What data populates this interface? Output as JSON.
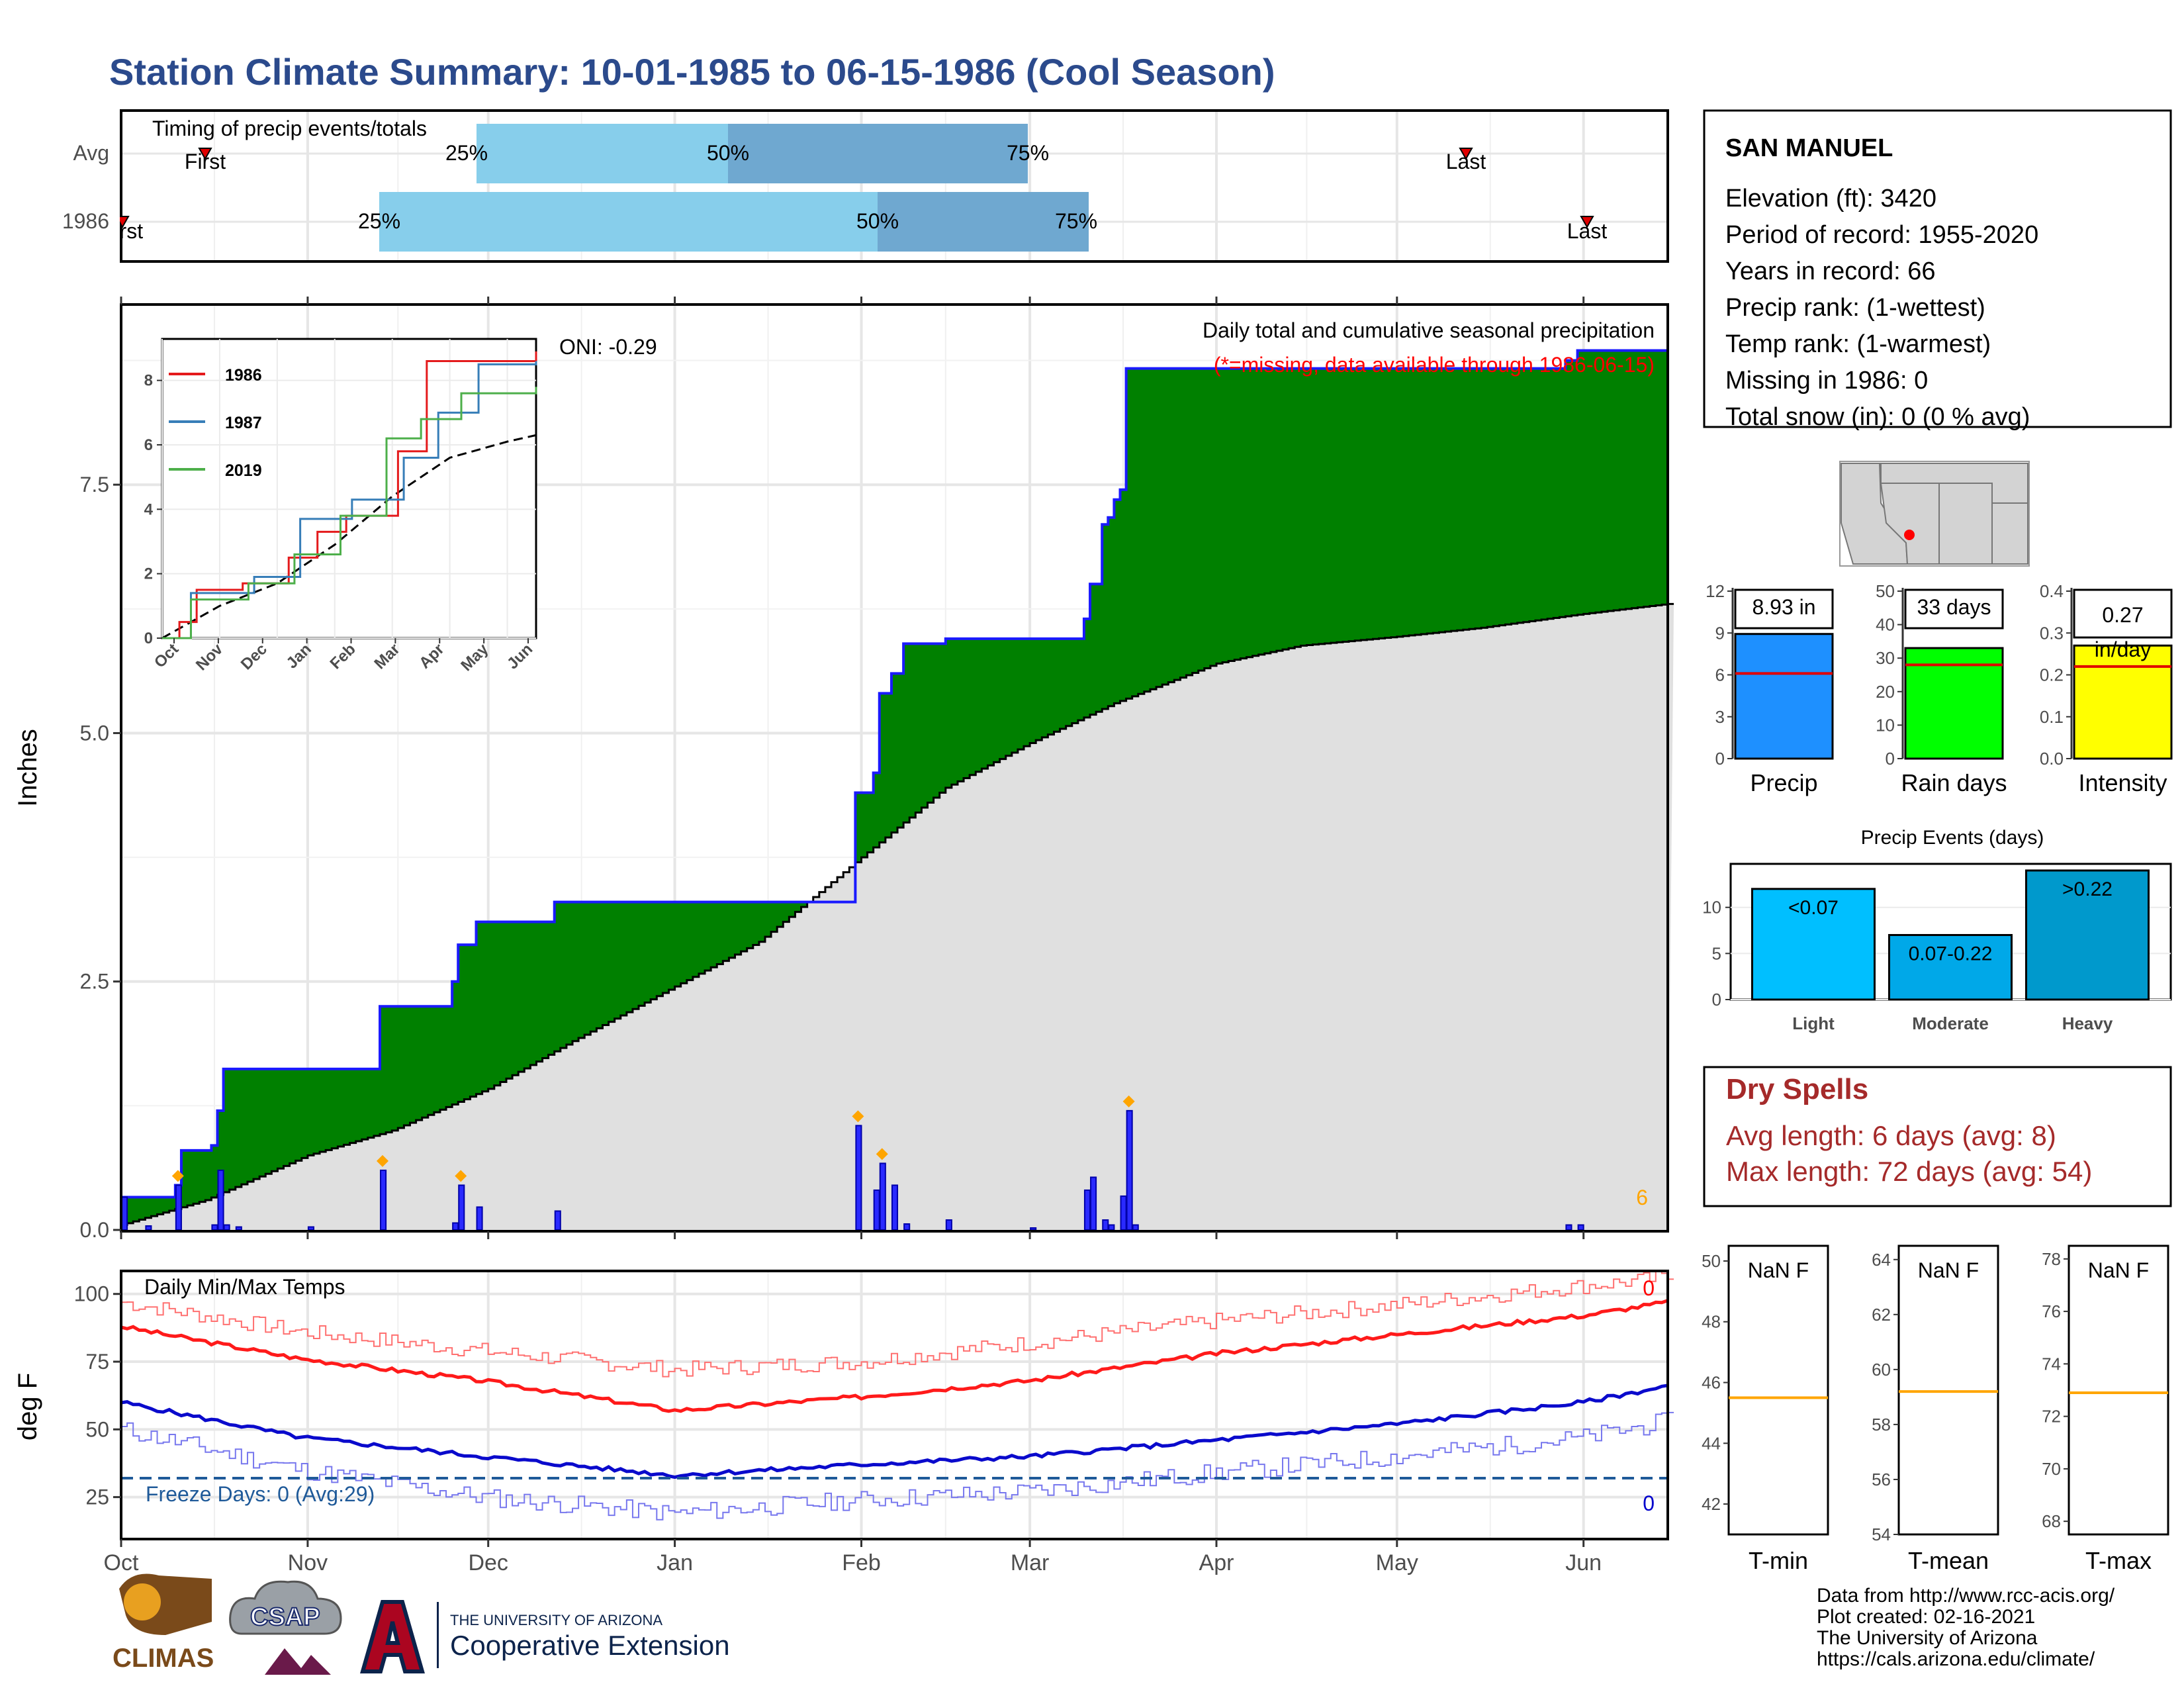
{
  "title": "Station Climate Summary: 10-01-1985 to 06-15-1986 (Cool Season)",
  "colors": {
    "title": "#2b4a8c",
    "cum_fill": "#008000",
    "deficit_fill": "#7a4a0a",
    "avg_fill": "#e0e0e0",
    "bar_blue": "#1a1aff",
    "marker": "#ffa500",
    "tmax": "#ff1a1a",
    "tmin": "#0a0acc",
    "freeze": "#1f5a99",
    "q_light": "#87ceeb",
    "q_dark": "#6fa8d0",
    "dry": "#a52a2a",
    "precip_bar": "#1e90ff",
    "raindays_bar": "#00ff00",
    "intensity_bar": "#ffff00",
    "evt_light": "#00bfff",
    "evt_mod": "#00a8e8",
    "evt_heavy": "#0099cc"
  },
  "months": [
    "Oct",
    "Nov",
    "Dec",
    "Jan",
    "Feb",
    "Mar",
    "Apr",
    "May",
    "Jun"
  ],
  "timing": {
    "label": "Timing of precip events/totals",
    "rows": [
      {
        "name": "Avg",
        "first_label": "First",
        "last_label": "Last",
        "p25": "25%",
        "p50": "50%",
        "p75": "75%"
      },
      {
        "name": "1986",
        "first_label": "First",
        "last_label": "Last",
        "p25": "25%",
        "p50": "50%",
        "p75": "75%"
      }
    ]
  },
  "station": {
    "name": "SAN MANUEL",
    "lines": [
      "Elevation (ft): 3420",
      "Period of record: 1955-2020",
      "Years in record: 66",
      "Precip rank:  (1-wettest)",
      "Temp rank:  (1-warmest)",
      "Missing in 1986: 0",
      "Total snow (in): 0 (0 % avg)"
    ]
  },
  "main": {
    "ylabel": "Inches",
    "yticks": [
      "0.0",
      "2.5",
      "5.0",
      "7.5"
    ],
    "oni": "ONI: -0.29",
    "caption1": "Daily total and cumulative seasonal precipitation",
    "caption2": "(*=missing, data available through 1986-06-15)",
    "corner_value": "6"
  },
  "inset": {
    "legend": [
      "1986",
      "1987",
      "2019"
    ],
    "yticks": [
      "0",
      "2",
      "4",
      "6",
      "8"
    ],
    "xticks": [
      "Oct",
      "Nov",
      "Dec",
      "Jan",
      "Feb",
      "Mar",
      "Apr",
      "May",
      "Jun"
    ]
  },
  "summary": {
    "precip": {
      "label": "Precip",
      "value": "8.93 in",
      "ticks": [
        "0",
        "3",
        "6",
        "9",
        "12"
      ]
    },
    "raindays": {
      "label": "Rain days",
      "value": "33 days",
      "ticks": [
        "0",
        "10",
        "20",
        "30",
        "40",
        "50"
      ]
    },
    "intensity": {
      "label": "Intensity",
      "value": "0.27",
      "unit": "in/day",
      "ticks": [
        "0.0",
        "0.1",
        "0.2",
        "0.3",
        "0.4"
      ]
    }
  },
  "events": {
    "title": "Precip Events (days)",
    "yticks": [
      "0",
      "5",
      "10"
    ],
    "bars": [
      {
        "label": "Light",
        "value_label": "<0.07"
      },
      {
        "label": "Moderate",
        "value_label": "0.07-0.22"
      },
      {
        "label": "Heavy",
        "value_label": ">0.22"
      }
    ]
  },
  "dry_spells": {
    "title": "Dry Spells",
    "avg": "Avg length: 6 days (avg: 8)",
    "max": "Max length: 72 days (avg: 54)"
  },
  "temps": {
    "ylabel": "deg F",
    "label": "Daily Min/Max Temps",
    "yticks": [
      "25",
      "50",
      "75",
      "100"
    ],
    "freeze": "Freeze Days: 0 (Avg:29)",
    "count_hot": "0",
    "count_cold": "0"
  },
  "temp_panels": [
    {
      "label": "T-min",
      "value": "NaN F",
      "ticks": [
        "42",
        "44",
        "46",
        "48",
        "50"
      ]
    },
    {
      "label": "T-mean",
      "value": "NaN F",
      "ticks": [
        "54",
        "56",
        "58",
        "60",
        "62",
        "64"
      ]
    },
    {
      "label": "T-max",
      "value": "NaN F",
      "ticks": [
        "68",
        "70",
        "72",
        "74",
        "76",
        "78"
      ]
    }
  ],
  "credits": [
    "Data from http://www.rcc-acis.org/",
    "Plot created: 02-16-2021",
    "The University of Arizona",
    "https://cals.arizona.edu/climate/"
  ],
  "logos": {
    "climas": "CLIMAS",
    "csap": "CSAP",
    "ua_top": "THE UNIVERSITY OF ARIZONA",
    "ua_main": "Cooperative Extension"
  },
  "chart_data": [
    {
      "type": "area",
      "name": "cumulative_precip",
      "x_start": "1985-10-01",
      "x_end": "1986-06-15",
      "ylim": [
        0,
        9.3
      ],
      "steps_1986": [
        [
          "1985-10-01",
          0.33
        ],
        [
          "1985-10-10",
          0.45
        ],
        [
          "1985-10-11",
          0.8
        ],
        [
          "1985-10-16",
          0.85
        ],
        [
          "1985-10-17",
          1.2
        ],
        [
          "1985-10-18",
          1.62
        ],
        [
          "1985-11-13",
          2.25
        ],
        [
          "1985-11-25",
          2.5
        ],
        [
          "1985-11-26",
          2.87
        ],
        [
          "1985-11-29",
          3.1
        ],
        [
          "1985-12-12",
          3.3
        ],
        [
          "1986-01-31",
          3.8
        ],
        [
          "1986-01-31",
          4.4
        ],
        [
          "1986-02-03",
          4.6
        ],
        [
          "1986-02-04",
          5.4
        ],
        [
          "1986-02-06",
          5.6
        ],
        [
          "1986-02-08",
          5.9
        ],
        [
          "1986-02-15",
          5.95
        ],
        [
          "1986-03-10",
          6.15
        ],
        [
          "1986-03-11",
          6.5
        ],
        [
          "1986-03-13",
          7.1
        ],
        [
          "1986-03-14",
          7.17
        ],
        [
          "1986-03-15",
          7.35
        ],
        [
          "1986-03-16",
          7.45
        ],
        [
          "1986-03-17",
          8.67
        ],
        [
          "1986-05-29",
          8.75
        ],
        [
          "1986-05-31",
          8.85
        ],
        [
          "1986-06-15",
          8.85
        ]
      ],
      "avg_points": [
        [
          "1985-10-01",
          0.05
        ],
        [
          "1985-10-15",
          0.3
        ],
        [
          "1985-11-01",
          0.75
        ],
        [
          "1985-11-15",
          1.0
        ],
        [
          "1985-12-01",
          1.42
        ],
        [
          "1985-12-15",
          1.9
        ],
        [
          "1986-01-01",
          2.45
        ],
        [
          "1986-01-15",
          2.9
        ],
        [
          "1986-02-01",
          3.75
        ],
        [
          "1986-02-15",
          4.45
        ],
        [
          "1986-03-01",
          4.9
        ],
        [
          "1986-03-15",
          5.3
        ],
        [
          "1986-04-01",
          5.7
        ],
        [
          "1986-04-15",
          5.88
        ],
        [
          "1986-05-01",
          5.97
        ],
        [
          "1986-05-15",
          6.06
        ],
        [
          "1986-06-01",
          6.2
        ],
        [
          "1986-06-15",
          6.3
        ]
      ],
      "daily_bars": [
        [
          "1985-10-01",
          0.33
        ],
        [
          "1985-10-05",
          0.04
        ],
        [
          "1985-10-10",
          0.45
        ],
        [
          "1985-10-16",
          0.05
        ],
        [
          "1985-10-17",
          0.6
        ],
        [
          "1985-10-18",
          0.05
        ],
        [
          "1985-10-20",
          0.03
        ],
        [
          "1985-11-01",
          0.03
        ],
        [
          "1985-11-13",
          0.6
        ],
        [
          "1985-11-25",
          0.07
        ],
        [
          "1985-11-26",
          0.45
        ],
        [
          "1985-11-29",
          0.23
        ],
        [
          "1985-12-12",
          0.19
        ],
        [
          "1986-01-31",
          1.05
        ],
        [
          "1986-02-03",
          0.4
        ],
        [
          "1986-02-04",
          0.67
        ],
        [
          "1986-02-06",
          0.45
        ],
        [
          "1986-02-08",
          0.06
        ],
        [
          "1986-02-15",
          0.1
        ],
        [
          "1986-03-01",
          0.02
        ],
        [
          "1986-03-10",
          0.4
        ],
        [
          "1986-03-11",
          0.53
        ],
        [
          "1986-03-13",
          0.1
        ],
        [
          "1986-03-14",
          0.05
        ],
        [
          "1986-03-16",
          0.34
        ],
        [
          "1986-03-17",
          1.2
        ],
        [
          "1986-03-18",
          0.05
        ],
        [
          "1986-05-29",
          0.05
        ],
        [
          "1986-05-31",
          0.05
        ]
      ],
      "markers": [
        "1985-10-10",
        "1985-11-13",
        "1985-11-26",
        "1986-01-31",
        "1986-02-04",
        "1986-03-17"
      ]
    },
    {
      "type": "line",
      "name": "inset_cumulative_comparison",
      "series": [
        {
          "name": "1986",
          "points": [
            [
              0,
              0
            ],
            [
              0.3,
              0.5
            ],
            [
              0.6,
              1.5
            ],
            [
              1.4,
              1.7
            ],
            [
              2.2,
              2.5
            ],
            [
              2.7,
              3.3
            ],
            [
              3.2,
              3.8
            ],
            [
              4.1,
              5.8
            ],
            [
              4.6,
              8.6
            ],
            [
              6.5,
              8.9
            ]
          ]
        },
        {
          "name": "1987",
          "points": [
            [
              0,
              0
            ],
            [
              0.5,
              1.4
            ],
            [
              1.6,
              1.9
            ],
            [
              2.4,
              3.7
            ],
            [
              3.3,
              4.3
            ],
            [
              4.2,
              5.6
            ],
            [
              4.8,
              7.0
            ],
            [
              5.5,
              8.5
            ],
            [
              6.5,
              8.6
            ]
          ]
        },
        {
          "name": "2019",
          "points": [
            [
              0,
              0
            ],
            [
              0.5,
              1.2
            ],
            [
              1.5,
              1.7
            ],
            [
              2.3,
              2.6
            ],
            [
              3.1,
              3.8
            ],
            [
              3.9,
              6.2
            ],
            [
              4.5,
              6.8
            ],
            [
              5.2,
              7.6
            ],
            [
              6.5,
              7.8
            ]
          ]
        }
      ],
      "avg": [
        [
          0,
          0
        ],
        [
          1,
          1.0
        ],
        [
          2,
          1.7
        ],
        [
          3,
          2.9
        ],
        [
          4,
          4.4
        ],
        [
          5,
          5.6
        ],
        [
          6,
          6.1
        ],
        [
          6.5,
          6.3
        ]
      ],
      "ylim": [
        0,
        9
      ],
      "xlim": [
        0,
        6.5
      ]
    },
    {
      "type": "bar",
      "name": "season_summary",
      "categories": [
        "Precip",
        "Rain days",
        "Intensity"
      ],
      "values": [
        8.93,
        33,
        0.27
      ],
      "averages": [
        6.1,
        28,
        0.22
      ],
      "ylims": [
        [
          0,
          12
        ],
        [
          0,
          50
        ],
        [
          0,
          0.4
        ]
      ]
    },
    {
      "type": "bar",
      "name": "precip_events",
      "categories": [
        "Light",
        "Moderate",
        "Heavy"
      ],
      "values": [
        12,
        7,
        14
      ],
      "ylim": [
        0,
        14
      ]
    },
    {
      "type": "line",
      "name": "daily_temps",
      "ylim": [
        10,
        108
      ],
      "tmax_avg": [
        [
          0,
          88
        ],
        [
          30,
          76
        ],
        [
          60,
          68
        ],
        [
          92,
          57
        ],
        [
          123,
          62
        ],
        [
          151,
          68
        ],
        [
          182,
          78
        ],
        [
          212,
          85
        ],
        [
          243,
          92
        ],
        [
          257,
          97
        ]
      ],
      "tmin_avg": [
        [
          0,
          60
        ],
        [
          30,
          47
        ],
        [
          60,
          40
        ],
        [
          92,
          33
        ],
        [
          123,
          37
        ],
        [
          151,
          40
        ],
        [
          182,
          46
        ],
        [
          212,
          52
        ],
        [
          243,
          60
        ],
        [
          257,
          66
        ]
      ],
      "tmax_hi": [
        [
          0,
          97
        ],
        [
          30,
          86
        ],
        [
          60,
          79
        ],
        [
          92,
          72
        ],
        [
          123,
          75
        ],
        [
          151,
          82
        ],
        [
          182,
          90
        ],
        [
          212,
          96
        ],
        [
          243,
          103
        ],
        [
          257,
          106
        ]
      ],
      "tmin_lo": [
        [
          0,
          50
        ],
        [
          30,
          35
        ],
        [
          60,
          25
        ],
        [
          92,
          19
        ],
        [
          123,
          24
        ],
        [
          151,
          27
        ],
        [
          182,
          34
        ],
        [
          212,
          40
        ],
        [
          243,
          47
        ],
        [
          257,
          53
        ]
      ],
      "freeze_line": 32
    },
    {
      "type": "bar",
      "name": "temp_summary",
      "categories": [
        "T-min",
        "T-mean",
        "T-max"
      ],
      "averages": [
        45.5,
        59.2,
        72.9
      ],
      "ylims": [
        [
          41,
          50.5
        ],
        [
          54,
          64.5
        ],
        [
          67.5,
          78.5
        ]
      ]
    }
  ]
}
